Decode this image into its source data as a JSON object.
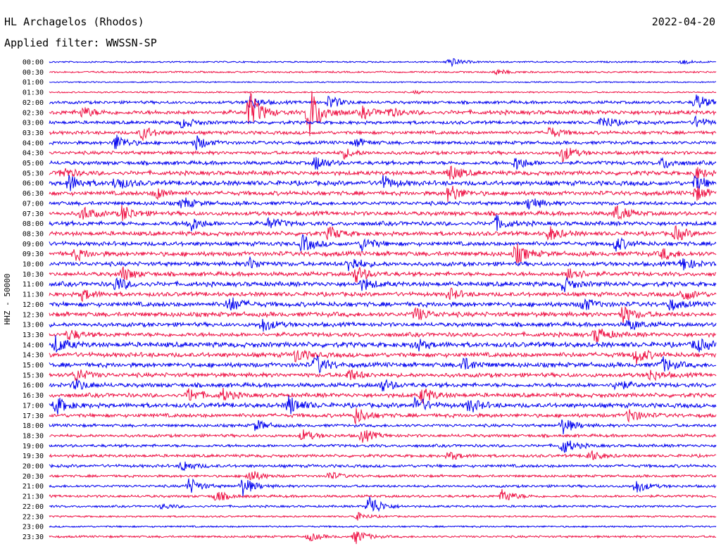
{
  "header": {
    "station": "HL Archagelos (Rhodos)",
    "date": "2022-04-20",
    "filter": "Applied filter: WWSSN-SP"
  },
  "chart_data": {
    "type": "line",
    "title": "HL Archagelos (Rhodos)",
    "ylabel": "HHZ - 50000",
    "colors": [
      "#0000ee",
      "#ee1144"
    ],
    "rows": [
      {
        "time": "00:00",
        "activity": 0.15,
        "events": [
          {
            "t": 0.6,
            "a": 7
          },
          {
            "t": 0.95,
            "a": 3
          }
        ]
      },
      {
        "time": "00:30",
        "activity": 0.2,
        "events": [
          {
            "t": 0.67,
            "a": 4
          }
        ]
      },
      {
        "time": "01:00",
        "activity": 0.1,
        "events": []
      },
      {
        "time": "01:30",
        "activity": 0.15,
        "events": [
          {
            "t": 0.55,
            "a": 2
          }
        ]
      },
      {
        "time": "02:00",
        "activity": 0.5,
        "events": [
          {
            "t": 0.3,
            "a": 10
          },
          {
            "t": 0.42,
            "a": 10
          },
          {
            "t": 0.97,
            "a": 12
          }
        ]
      },
      {
        "time": "02:30",
        "activity": 0.8,
        "events": [
          {
            "t": 0.05,
            "a": 8
          },
          {
            "t": 0.3,
            "a": 30
          },
          {
            "t": 0.39,
            "a": 40
          },
          {
            "t": 0.47,
            "a": 8
          },
          {
            "t": 0.51,
            "a": 6
          }
        ]
      },
      {
        "time": "03:00",
        "activity": 0.6,
        "events": [
          {
            "t": 0.2,
            "a": 8
          },
          {
            "t": 0.83,
            "a": 10
          },
          {
            "t": 0.97,
            "a": 8
          }
        ]
      },
      {
        "time": "03:30",
        "activity": 0.6,
        "events": [
          {
            "t": 0.14,
            "a": 10
          },
          {
            "t": 0.75,
            "a": 8
          }
        ]
      },
      {
        "time": "04:00",
        "activity": 0.6,
        "events": [
          {
            "t": 0.1,
            "a": 12
          },
          {
            "t": 0.22,
            "a": 10
          },
          {
            "t": 0.46,
            "a": 6
          }
        ]
      },
      {
        "time": "04:30",
        "activity": 0.6,
        "events": [
          {
            "t": 0.44,
            "a": 8
          },
          {
            "t": 0.77,
            "a": 12
          }
        ]
      },
      {
        "time": "05:00",
        "activity": 0.7,
        "events": [
          {
            "t": 0.4,
            "a": 10
          },
          {
            "t": 0.7,
            "a": 10
          },
          {
            "t": 0.92,
            "a": 8
          }
        ]
      },
      {
        "time": "05:30",
        "activity": 0.8,
        "events": [
          {
            "t": 0.02,
            "a": 8
          },
          {
            "t": 0.6,
            "a": 12
          },
          {
            "t": 0.97,
            "a": 8
          }
        ]
      },
      {
        "time": "06:00",
        "activity": 0.9,
        "events": [
          {
            "t": 0.03,
            "a": 12
          },
          {
            "t": 0.1,
            "a": 10
          },
          {
            "t": 0.5,
            "a": 10
          },
          {
            "t": 0.97,
            "a": 10
          }
        ]
      },
      {
        "time": "06:30",
        "activity": 0.8,
        "events": [
          {
            "t": 0.16,
            "a": 8
          },
          {
            "t": 0.6,
            "a": 14
          },
          {
            "t": 0.97,
            "a": 10
          }
        ]
      },
      {
        "time": "07:00",
        "activity": 0.7,
        "events": [
          {
            "t": 0.2,
            "a": 8
          },
          {
            "t": 0.72,
            "a": 10
          }
        ]
      },
      {
        "time": "07:30",
        "activity": 0.8,
        "events": [
          {
            "t": 0.05,
            "a": 10
          },
          {
            "t": 0.11,
            "a": 12
          },
          {
            "t": 0.85,
            "a": 12
          }
        ]
      },
      {
        "time": "08:00",
        "activity": 0.8,
        "events": [
          {
            "t": 0.21,
            "a": 12
          },
          {
            "t": 0.33,
            "a": 8
          },
          {
            "t": 0.67,
            "a": 10
          }
        ]
      },
      {
        "time": "08:30",
        "activity": 0.8,
        "events": [
          {
            "t": 0.42,
            "a": 10
          },
          {
            "t": 0.75,
            "a": 10
          },
          {
            "t": 0.94,
            "a": 10
          }
        ]
      },
      {
        "time": "09:00",
        "activity": 0.8,
        "events": [
          {
            "t": 0.38,
            "a": 12
          },
          {
            "t": 0.47,
            "a": 10
          },
          {
            "t": 0.85,
            "a": 10
          }
        ]
      },
      {
        "time": "09:30",
        "activity": 0.9,
        "events": [
          {
            "t": 0.04,
            "a": 8
          },
          {
            "t": 0.7,
            "a": 14
          },
          {
            "t": 0.92,
            "a": 8
          }
        ]
      },
      {
        "time": "10:00",
        "activity": 0.8,
        "events": [
          {
            "t": 0.3,
            "a": 8
          },
          {
            "t": 0.45,
            "a": 12
          },
          {
            "t": 0.95,
            "a": 10
          }
        ]
      },
      {
        "time": "10:30",
        "activity": 0.8,
        "events": [
          {
            "t": 0.11,
            "a": 10
          },
          {
            "t": 0.46,
            "a": 12
          },
          {
            "t": 0.78,
            "a": 12
          }
        ]
      },
      {
        "time": "11:00",
        "activity": 0.9,
        "events": [
          {
            "t": 0.1,
            "a": 10
          },
          {
            "t": 0.47,
            "a": 8
          },
          {
            "t": 0.77,
            "a": 10
          }
        ]
      },
      {
        "time": "11:30",
        "activity": 0.8,
        "events": [
          {
            "t": 0.05,
            "a": 8
          },
          {
            "t": 0.6,
            "a": 8
          },
          {
            "t": 0.95,
            "a": 10
          }
        ]
      },
      {
        "time": "12:00",
        "activity": 0.9,
        "events": [
          {
            "t": 0.27,
            "a": 12
          },
          {
            "t": 0.8,
            "a": 10
          },
          {
            "t": 0.93,
            "a": 8
          }
        ]
      },
      {
        "time": "12:30",
        "activity": 0.9,
        "events": [
          {
            "t": 0.55,
            "a": 10
          },
          {
            "t": 0.86,
            "a": 12
          }
        ]
      },
      {
        "time": "13:00",
        "activity": 0.8,
        "events": [
          {
            "t": 0.32,
            "a": 10
          },
          {
            "t": 0.87,
            "a": 8
          }
        ]
      },
      {
        "time": "13:30",
        "activity": 0.8,
        "events": [
          {
            "t": 0.03,
            "a": 8
          },
          {
            "t": 0.82,
            "a": 12
          }
        ]
      },
      {
        "time": "14:00",
        "activity": 1.0,
        "events": [
          {
            "t": 0.01,
            "a": 12
          },
          {
            "t": 0.55,
            "a": 8
          },
          {
            "t": 0.97,
            "a": 10
          }
        ]
      },
      {
        "time": "14:30",
        "activity": 0.9,
        "events": [
          {
            "t": 0.37,
            "a": 10
          },
          {
            "t": 0.88,
            "a": 12
          }
        ]
      },
      {
        "time": "15:00",
        "activity": 0.9,
        "events": [
          {
            "t": 0.4,
            "a": 14
          },
          {
            "t": 0.62,
            "a": 10
          },
          {
            "t": 0.92,
            "a": 10
          }
        ]
      },
      {
        "time": "15:30",
        "activity": 0.8,
        "events": [
          {
            "t": 0.04,
            "a": 10
          },
          {
            "t": 0.45,
            "a": 8
          },
          {
            "t": 0.9,
            "a": 8
          }
        ]
      },
      {
        "time": "16:00",
        "activity": 0.8,
        "events": [
          {
            "t": 0.04,
            "a": 8
          },
          {
            "t": 0.5,
            "a": 8
          },
          {
            "t": 0.85,
            "a": 8
          }
        ]
      },
      {
        "time": "16:30",
        "activity": 0.8,
        "events": [
          {
            "t": 0.21,
            "a": 10
          },
          {
            "t": 0.56,
            "a": 12
          },
          {
            "t": 0.26,
            "a": 8
          }
        ]
      },
      {
        "time": "17:00",
        "activity": 0.9,
        "events": [
          {
            "t": 0.01,
            "a": 12
          },
          {
            "t": 0.36,
            "a": 14
          },
          {
            "t": 0.55,
            "a": 12
          },
          {
            "t": 0.63,
            "a": 10
          }
        ]
      },
      {
        "time": "17:30",
        "activity": 0.7,
        "events": [
          {
            "t": 0.46,
            "a": 12
          },
          {
            "t": 0.87,
            "a": 10
          }
        ]
      },
      {
        "time": "18:00",
        "activity": 0.5,
        "events": [
          {
            "t": 0.31,
            "a": 8
          },
          {
            "t": 0.77,
            "a": 12
          }
        ]
      },
      {
        "time": "18:30",
        "activity": 0.5,
        "events": [
          {
            "t": 0.38,
            "a": 8
          },
          {
            "t": 0.47,
            "a": 10
          }
        ]
      },
      {
        "time": "19:00",
        "activity": 0.5,
        "events": [
          {
            "t": 0.77,
            "a": 12
          }
        ]
      },
      {
        "time": "19:30",
        "activity": 0.5,
        "events": [
          {
            "t": 0.6,
            "a": 6
          },
          {
            "t": 0.81,
            "a": 8
          }
        ]
      },
      {
        "time": "20:00",
        "activity": 0.5,
        "events": [
          {
            "t": 0.2,
            "a": 8
          }
        ]
      },
      {
        "time": "20:30",
        "activity": 0.4,
        "events": [
          {
            "t": 0.3,
            "a": 10
          },
          {
            "t": 0.42,
            "a": 6
          }
        ]
      },
      {
        "time": "21:00",
        "activity": 0.4,
        "events": [
          {
            "t": 0.21,
            "a": 12
          },
          {
            "t": 0.29,
            "a": 14
          },
          {
            "t": 0.88,
            "a": 10
          }
        ]
      },
      {
        "time": "21:30",
        "activity": 0.4,
        "events": [
          {
            "t": 0.25,
            "a": 8
          },
          {
            "t": 0.68,
            "a": 10
          }
        ]
      },
      {
        "time": "22:00",
        "activity": 0.3,
        "events": [
          {
            "t": 0.48,
            "a": 18
          },
          {
            "t": 0.17,
            "a": 4
          }
        ]
      },
      {
        "time": "22:30",
        "activity": 0.2,
        "events": [
          {
            "t": 0.46,
            "a": 6
          }
        ]
      },
      {
        "time": "23:00",
        "activity": 0.2,
        "events": []
      },
      {
        "time": "23:30",
        "activity": 0.3,
        "events": [
          {
            "t": 0.39,
            "a": 6
          },
          {
            "t": 0.46,
            "a": 10
          }
        ]
      }
    ]
  }
}
